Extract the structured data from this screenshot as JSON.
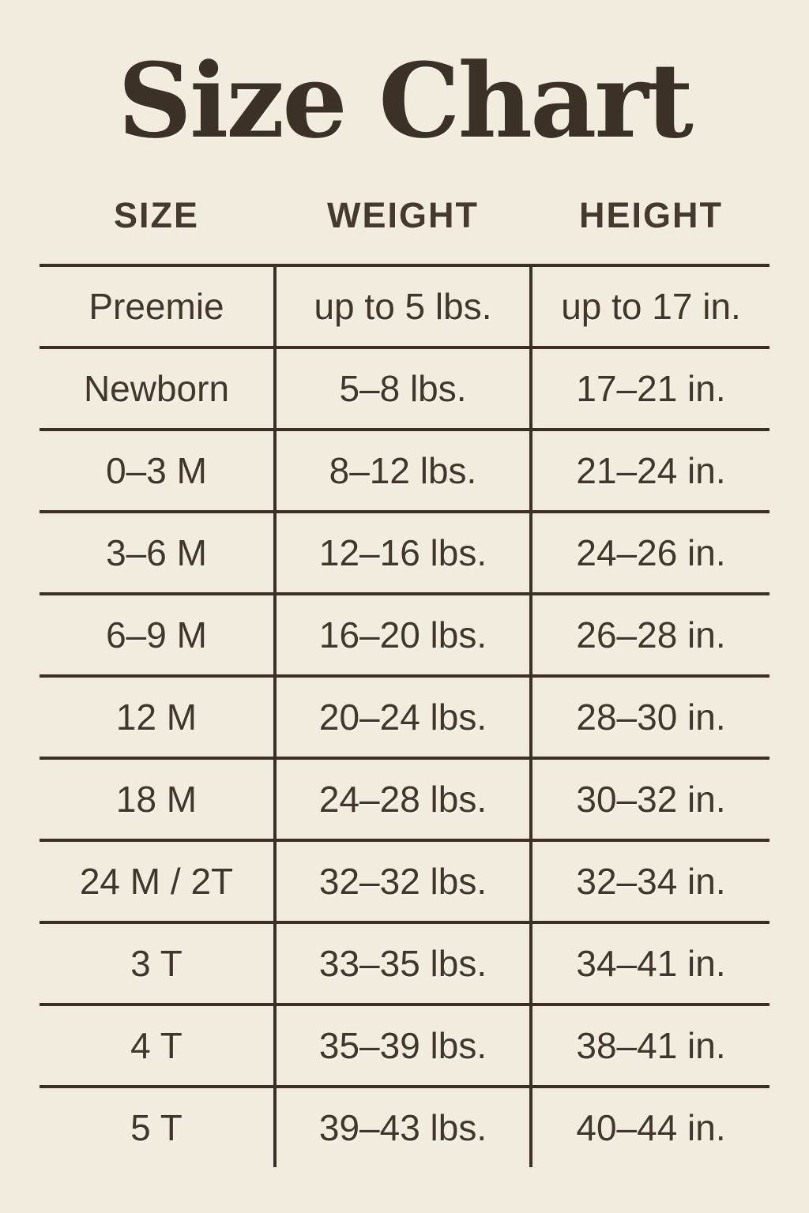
{
  "colors": {
    "background": "#f2ecdf",
    "text": "#41362a",
    "lines": "#3a2f24"
  },
  "chart_data": {
    "type": "table",
    "title": "Size Chart",
    "columns": [
      "SIZE",
      "WEIGHT",
      "HEIGHT"
    ],
    "rows": [
      [
        "Preemie",
        "up to 5 lbs.",
        "up to 17 in."
      ],
      [
        "Newborn",
        "5–8 lbs.",
        "17–21 in."
      ],
      [
        "0–3 M",
        "8–12 lbs.",
        "21–24 in."
      ],
      [
        "3–6 M",
        "12–16 lbs.",
        "24–26 in."
      ],
      [
        "6–9 M",
        "16–20 lbs.",
        "26–28 in."
      ],
      [
        "12 M",
        "20–24 lbs.",
        "28–30 in."
      ],
      [
        "18 M",
        "24–28 lbs.",
        "30–32 in."
      ],
      [
        "24 M / 2T",
        "32–32 lbs.",
        "32–34 in."
      ],
      [
        "3 T",
        "33–35 lbs.",
        "34–41 in."
      ],
      [
        "4 T",
        "35–39 lbs.",
        "38–41 in."
      ],
      [
        "5 T",
        "39–43 lbs.",
        "40–44 in."
      ]
    ]
  }
}
